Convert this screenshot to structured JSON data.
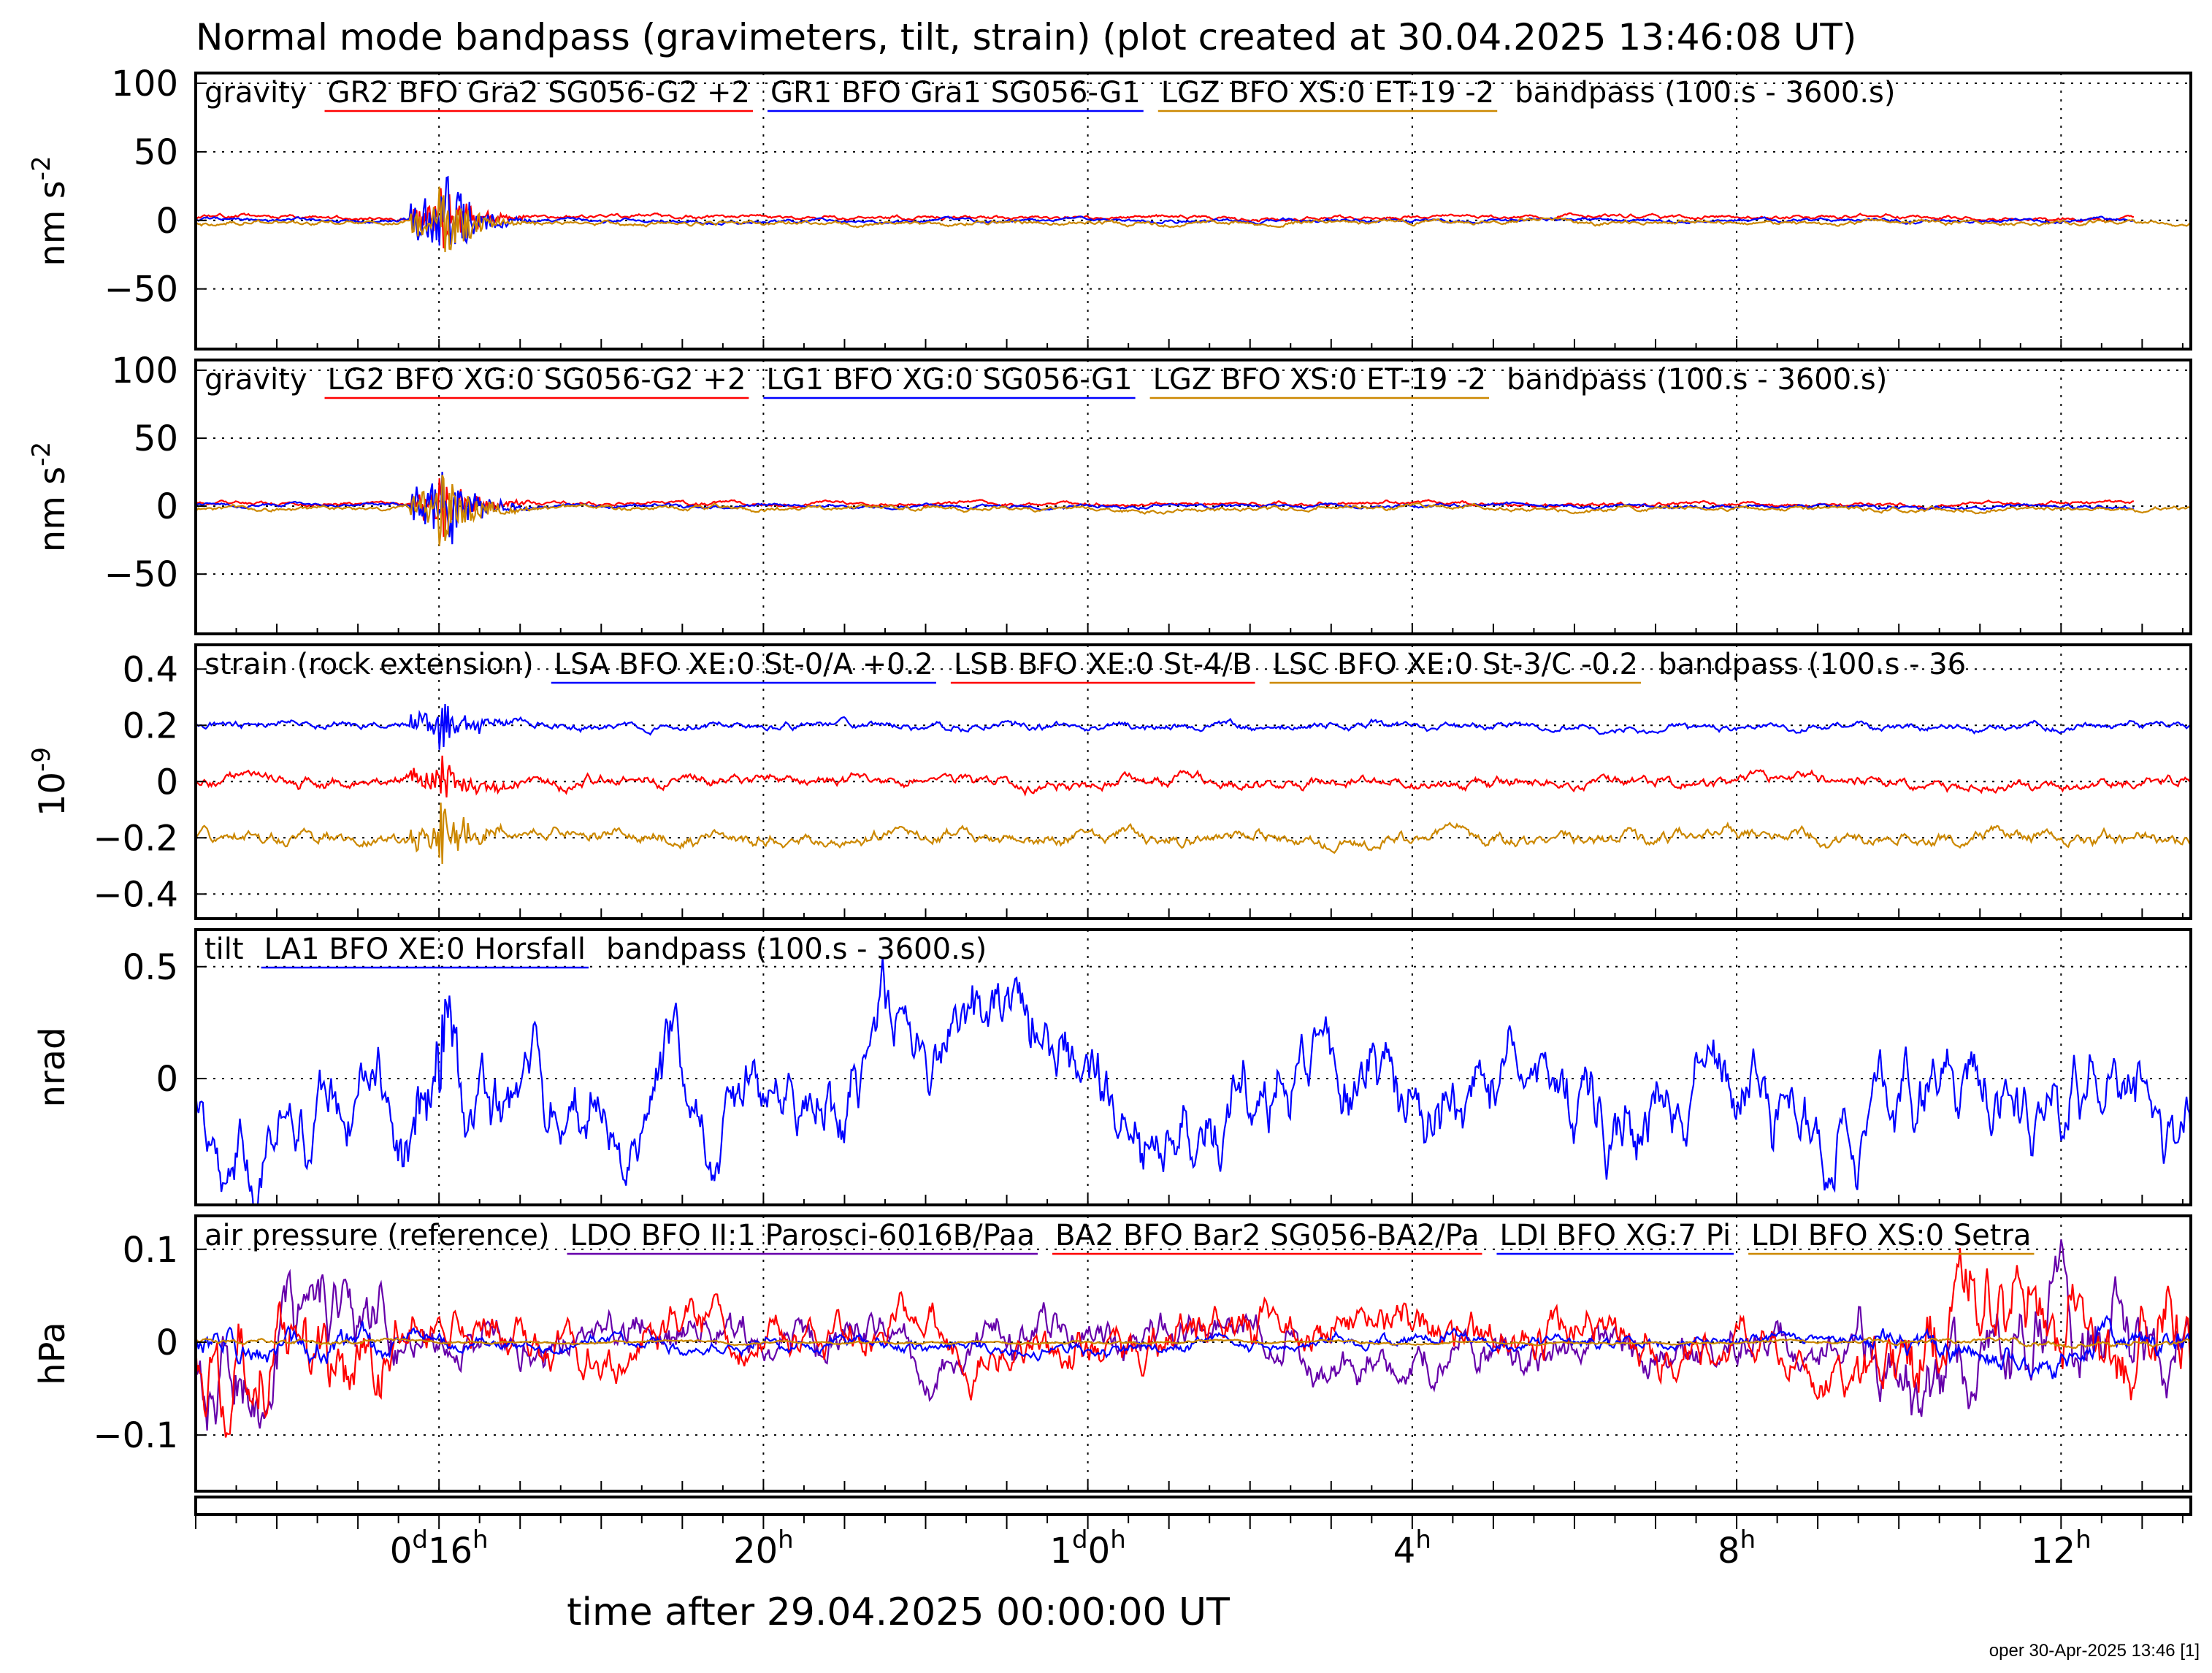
{
  "title": "Normal mode bandpass (gravimeters, tilt, strain) (plot created at 30.04.2025 13:46:08 UT)",
  "footer": "oper 30-Apr-2025 13:46 [1]",
  "x_axis": {
    "label": "time after 29.04.2025 00:00:00 UT",
    "range_hours": [
      13.0,
      37.6
    ],
    "ticks": [
      {
        "h": 16,
        "pre": "0",
        "pre_sup": "d",
        "main": "16",
        "sup": "h"
      },
      {
        "h": 20,
        "pre": "",
        "pre_sup": "",
        "main": "20",
        "sup": "h"
      },
      {
        "h": 24,
        "pre": "1",
        "pre_sup": "d",
        "main": "0",
        "sup": "h"
      },
      {
        "h": 28,
        "pre": "",
        "pre_sup": "",
        "main": "4",
        "sup": "h"
      },
      {
        "h": 32,
        "pre": "",
        "pre_sup": "",
        "main": "8",
        "sup": "h"
      },
      {
        "h": 36,
        "pre": "",
        "pre_sup": "",
        "main": "12",
        "sup": "h"
      }
    ]
  },
  "colors": {
    "red": "#ff0000",
    "blue": "#0000ff",
    "orange": "#cc8800",
    "purple": "#6600aa",
    "frame": "#000000"
  },
  "chart_data": [
    {
      "type": "line",
      "category": "gravity",
      "legend_prefix": "gravity",
      "legend_suffix": "bandpass (100.s - 3600.s)",
      "ylabel": "nm s",
      "ylabel_sup": "-2",
      "ylim": [
        -80,
        100
      ],
      "yticks": [
        100,
        50,
        0,
        -50
      ],
      "series": [
        {
          "name": "GR2 BFO Gra2 SG056-G2 +2",
          "color": "#ff0000",
          "offset": 2,
          "noise": 1.3,
          "quake": 25,
          "seed": 11
        },
        {
          "name": "GR1 BFO Gra1 SG056-G1",
          "color": "#0000ff",
          "offset": 0,
          "noise": 1.2,
          "quake": 40,
          "seed": 12
        },
        {
          "name": "LGZ BFO XS:0 ET-19 -2",
          "color": "#cc8800",
          "offset": -2,
          "noise": 1.5,
          "quake": 28,
          "seed": 13
        }
      ]
    },
    {
      "type": "line",
      "category": "gravity",
      "legend_prefix": "gravity",
      "legend_suffix": "bandpass (100.s - 3600.s)",
      "ylabel": "nm s",
      "ylabel_sup": "-2",
      "ylim": [
        -80,
        100
      ],
      "yticks": [
        100,
        50,
        0,
        -50
      ],
      "series": [
        {
          "name": "LG2 BFO XG:0 SG056-G2 +2",
          "color": "#ff0000",
          "offset": 2,
          "noise": 1.3,
          "quake": 25,
          "seed": 21
        },
        {
          "name": "LG1 BFO XG:0 SG056-G1",
          "color": "#0000ff",
          "offset": 0,
          "noise": 1.2,
          "quake": 40,
          "seed": 22
        },
        {
          "name": "LGZ BFO XS:0 ET-19 -2",
          "color": "#cc8800",
          "offset": -2,
          "noise": 1.5,
          "quake": 28,
          "seed": 23
        }
      ]
    },
    {
      "type": "line",
      "category": "strain",
      "legend_prefix": "strain (rock extension)",
      "legend_suffix": "bandpass (100.s - 36",
      "ylabel": "10",
      "ylabel_sup": "-9",
      "ylim": [
        -0.42,
        0.45
      ],
      "yticks": [
        0.4,
        0.2,
        0,
        -0.2,
        -0.4
      ],
      "series": [
        {
          "name": "LSA BFO XE:0 St-0/A +0.2",
          "color": "#0000ff",
          "offset": 0.2,
          "noise": 0.012,
          "quake": 0.09,
          "seed": 31
        },
        {
          "name": "LSB BFO XE:0 St-4/B",
          "color": "#ff0000",
          "offset": 0,
          "noise": 0.018,
          "quake": 0.08,
          "seed": 32
        },
        {
          "name": "LSC BFO XE:0 St-3/C -0.2",
          "color": "#cc8800",
          "offset": -0.2,
          "noise": 0.02,
          "quake": 0.11,
          "seed": 33
        }
      ]
    },
    {
      "type": "line",
      "category": "tilt",
      "legend_prefix": "tilt",
      "legend_suffix": "bandpass (100.s - 3600.s)",
      "ylabel": "nrad",
      "ylabel_sup": "",
      "ylim": [
        -0.48,
        0.62
      ],
      "yticks": [
        0.5,
        0
      ],
      "series": [
        {
          "name": "LA1 BFO XE:0 Horsfall",
          "color": "#0000ff",
          "offset": 0,
          "noise": 0.2,
          "quake": 0.15,
          "seed": 41
        }
      ]
    },
    {
      "type": "line",
      "category": "air pressure",
      "legend_prefix": "air pressure (reference)",
      "legend_suffix": "",
      "ylabel": "hPa",
      "ylabel_sup": "",
      "ylim": [
        -0.14,
        0.125
      ],
      "yticks": [
        0.1,
        0,
        -0.1
      ],
      "series": [
        {
          "name": "LDO BFO II:1 Parosci-6016B/Paa",
          "color": "#6600aa",
          "offset": 0,
          "noise": 0.03,
          "quake": 0,
          "seed": 51
        },
        {
          "name": "BA2 BFO Bar2 SG056-BA2/Pa",
          "color": "#ff0000",
          "offset": 0,
          "noise": 0.032,
          "quake": 0,
          "seed": 52
        },
        {
          "name": "LDI BFO XG:7 Pi",
          "color": "#0000ff",
          "offset": 0,
          "noise": 0.01,
          "quake": 0,
          "seed": 53
        },
        {
          "name": "LDI BFO XS:0 Setra",
          "color": "#cc8800",
          "offset": 0,
          "noise": 0.002,
          "quake": 0,
          "seed": 54
        }
      ]
    }
  ]
}
